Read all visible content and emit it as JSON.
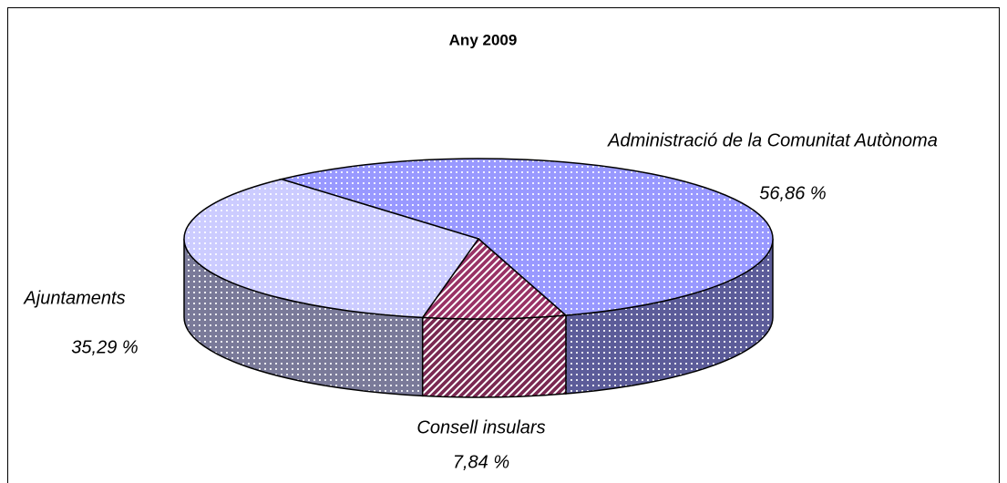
{
  "chart_data": {
    "type": "pie",
    "title": "Any 2009",
    "categories": [
      "Administració de la Comunitat Autònoma",
      "Consell insulars",
      "Ajuntaments"
    ],
    "values": [
      56.86,
      7.84,
      35.29
    ],
    "value_labels": [
      "56,86 %",
      "7,84 %",
      "35,29 %"
    ],
    "colors": [
      "#9999ff",
      "#993366",
      "#ccccff"
    ]
  }
}
